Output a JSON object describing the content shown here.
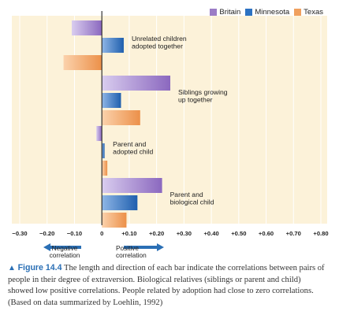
{
  "legend": {
    "britain": "Britain",
    "minnesota": "Minnesota",
    "texas": "Texas"
  },
  "colors": {
    "britain": "#9b7cc6",
    "minnesota": "#2c72c2",
    "texas": "#f0a05e",
    "panel": "#fcf2d9",
    "arrow": "#2a6fb5"
  },
  "chart_data": {
    "type": "bar",
    "orientation": "horizontal",
    "xlim": [
      -0.3,
      0.8
    ],
    "x_ticks": [
      "−0.30",
      "−0.20",
      "−0.10",
      "0",
      "+0.10",
      "+0.20",
      "+0.30",
      "+0.40",
      "+0.50",
      "+0.60",
      "+0.70",
      "+0.80"
    ],
    "groups": [
      {
        "label": "Unrelated children adopted together",
        "label_lines": [
          "Unrelated children",
          "adopted together"
        ],
        "values": [
          -0.11,
          0.08,
          -0.14
        ]
      },
      {
        "label": "Siblings growing up together",
        "label_lines": [
          "Siblings growing",
          "up together"
        ],
        "values": [
          0.25,
          0.07,
          0.14
        ]
      },
      {
        "label": "Parent and adopted child",
        "label_lines": [
          "Parent and",
          "adopted child"
        ],
        "values": [
          -0.02,
          0.01,
          0.02
        ]
      },
      {
        "label": "Parent and biological child",
        "label_lines": [
          "Parent and",
          "biological child"
        ],
        "values": [
          0.22,
          0.13,
          0.09
        ]
      }
    ],
    "series": [
      {
        "name": "Britain"
      },
      {
        "name": "Minnesota"
      },
      {
        "name": "Texas"
      }
    ],
    "negative_label": [
      "Negative",
      "correlation"
    ],
    "positive_label": [
      "Positive",
      "correlation"
    ]
  },
  "caption": {
    "figure": "Figure 14.4",
    "text": "The length and direction of each bar indicate the correlations between pairs of people in their degree of extraversion. Biological relatives (siblings or parent and child) showed low positive correlations. People related by adoption had close to zero correlations. (Based on data summarized by Loehlin, 1992)"
  }
}
